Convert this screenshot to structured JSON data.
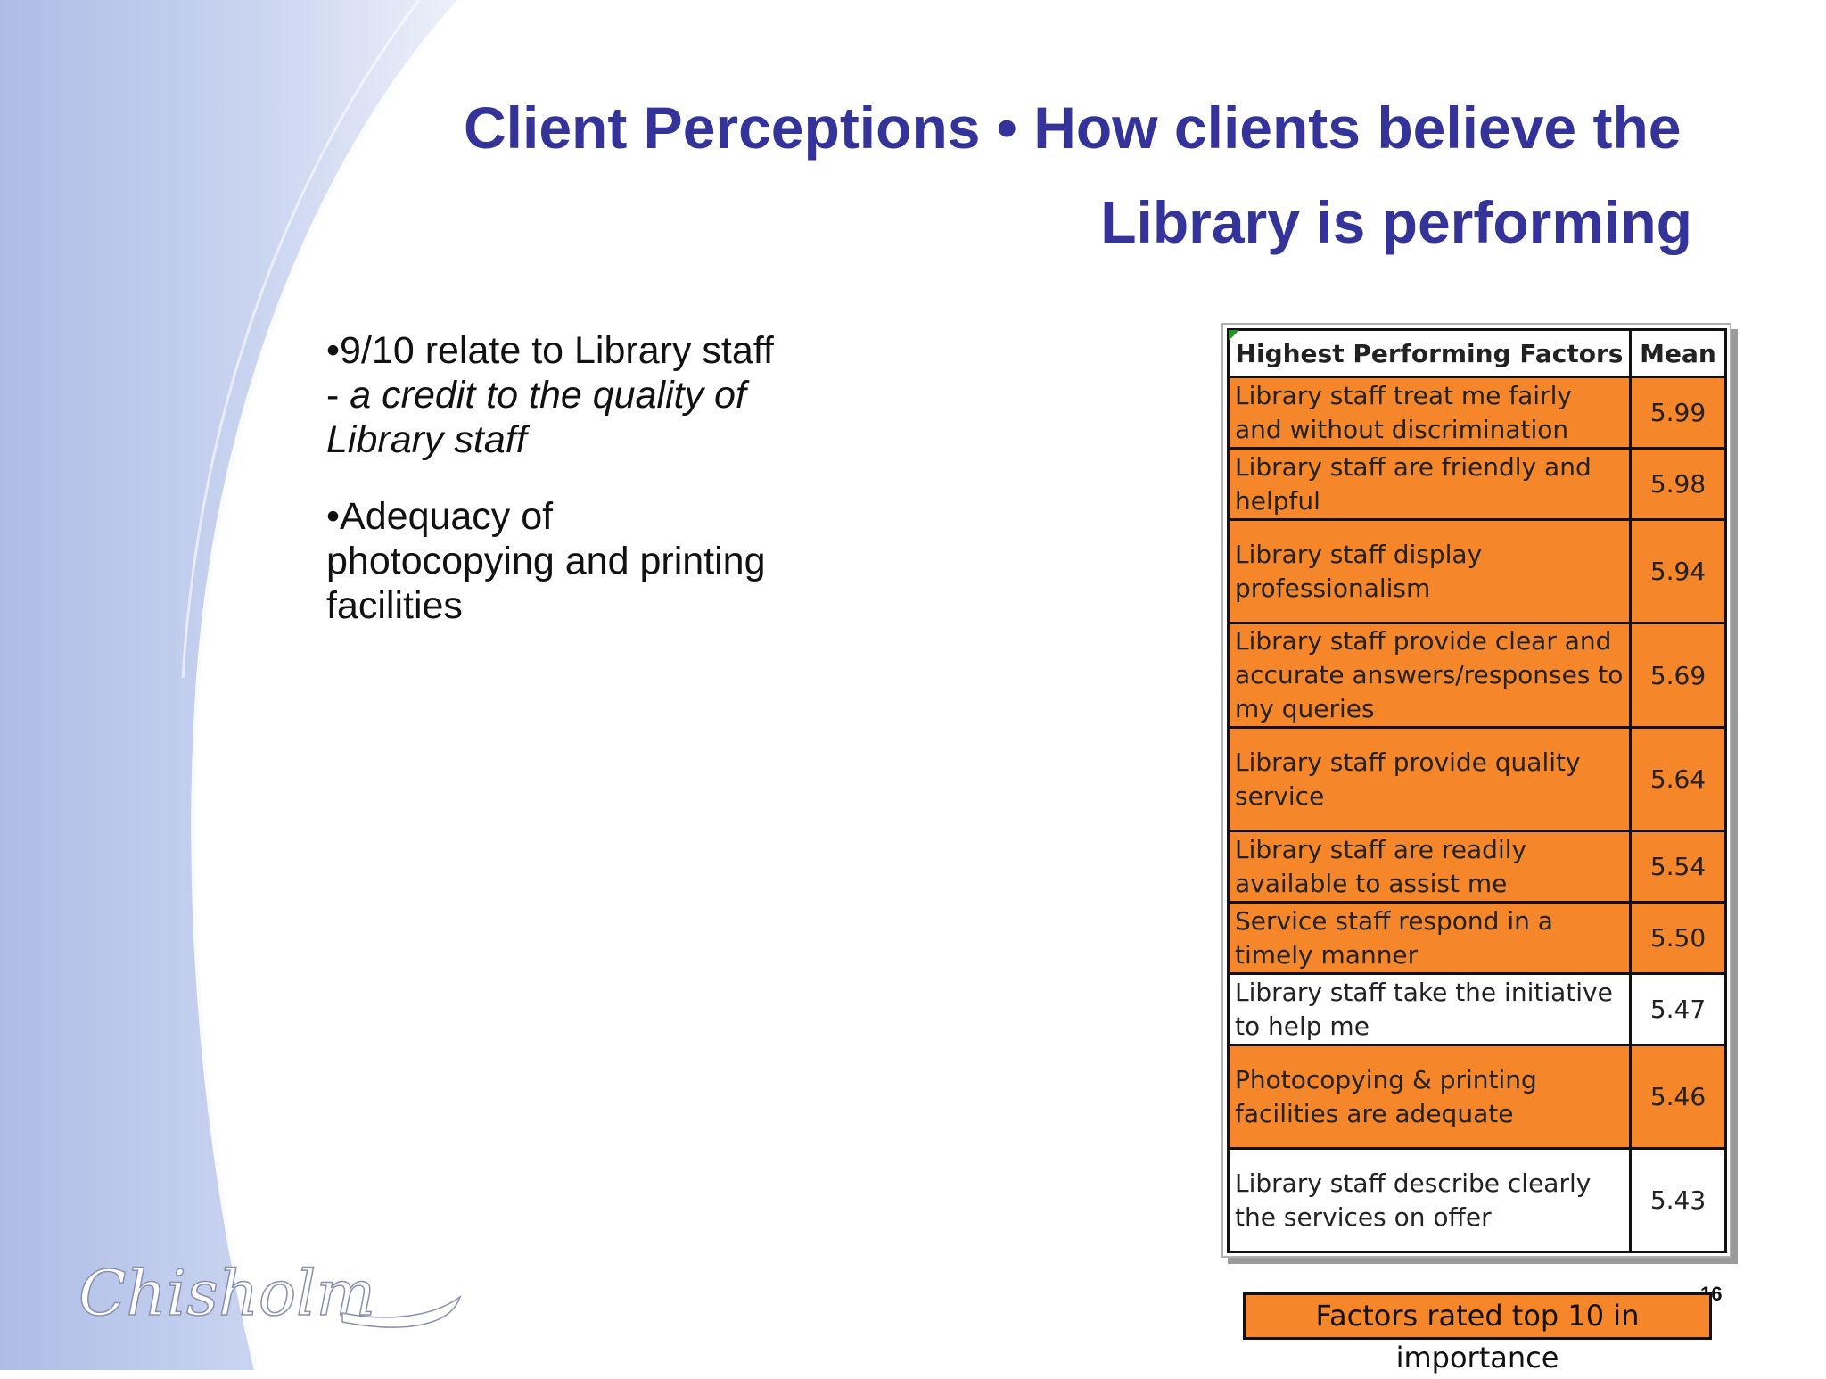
{
  "slide": {
    "title_line1": "Client Perceptions •  How clients believe the",
    "title_line2": "Library is performing",
    "page_number": "16",
    "logo_text": "Chisholm"
  },
  "bullets": {
    "b1_main": "•9/10 relate to Library staff  - ",
    "b1_italic": "a credit to the quality of Library staff",
    "b2": "•Adequacy of photocopying and printing facilities"
  },
  "table": {
    "headers": {
      "factor": "Highest Performing Factors",
      "mean": "Mean"
    },
    "rows": [
      {
        "factor": "Library staff treat me fairly and without discrimination",
        "mean": "5.99",
        "highlight": true
      },
      {
        "factor": "Library staff are friendly and helpful",
        "mean": "5.98",
        "highlight": true
      },
      {
        "factor": "Library staff display professionalism",
        "mean": "5.94",
        "highlight": true
      },
      {
        "factor": "Library staff provide clear and accurate answers/responses to my queries",
        "mean": "5.69",
        "highlight": true
      },
      {
        "factor": "Library staff provide quality service",
        "mean": "5.64",
        "highlight": true
      },
      {
        "factor": "Library staff are readily available to assist me",
        "mean": "5.54",
        "highlight": true
      },
      {
        "factor": "Service staff respond in a timely manner",
        "mean": "5.50",
        "highlight": true
      },
      {
        "factor": "Library staff take the initiative to help me",
        "mean": "5.47",
        "highlight": false
      },
      {
        "factor": "Photocopying & printing facilities are adequate",
        "mean": "5.46",
        "highlight": true
      },
      {
        "factor": "Library staff describe clearly the services on offer",
        "mean": "5.43",
        "highlight": false
      }
    ]
  },
  "legend": {
    "label": "Factors rated top 10 in importance",
    "color": "#f5862a"
  },
  "colors": {
    "title": "#333399",
    "highlight": "#f5862a"
  }
}
